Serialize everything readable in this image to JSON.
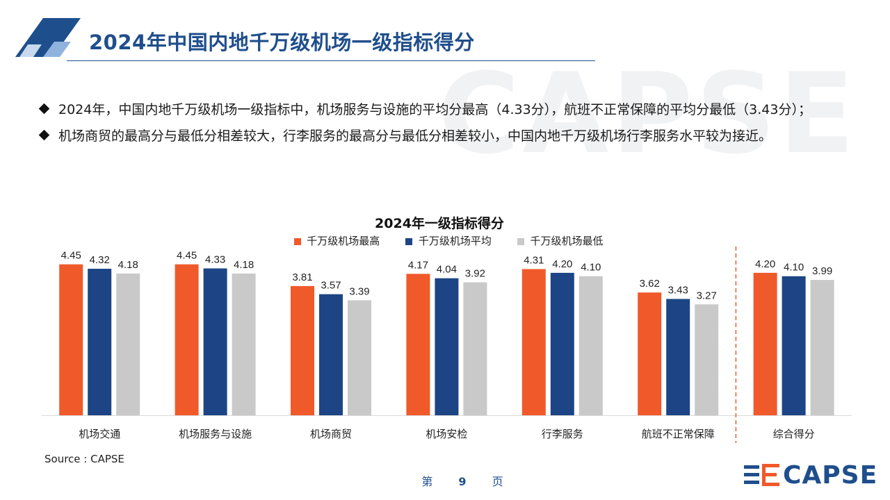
{
  "header": {
    "title": "2024年中国内地千万级机场一级指标得分"
  },
  "watermark": "CAPSE",
  "bullets": [
    "2024年，中国内地千万级机场一级指标中，机场服务与设施的平均分最高（4.33分），航班不正常保障的平均分最低（3.43分）；",
    "机场商贸的最高分与最低分相差较大，行李服务的最高分与最低分相差较小，中国内地千万级机场行李服务水平较为接近。"
  ],
  "chart_data": {
    "type": "bar",
    "title": "2024年一级指标得分",
    "categories": [
      "机场交通",
      "机场服务与设施",
      "机场商贸",
      "机场安检",
      "行李服务",
      "航班不正常保障",
      "综合得分"
    ],
    "series": [
      {
        "name": "千万级机场最高",
        "color": "#f0592a",
        "values": [
          4.45,
          4.45,
          3.81,
          4.17,
          4.31,
          3.62,
          4.2
        ]
      },
      {
        "name": "千万级机场平均",
        "color": "#1d4585",
        "values": [
          4.32,
          4.33,
          3.57,
          4.04,
          4.2,
          3.43,
          4.1
        ]
      },
      {
        "name": "千万级机场最低",
        "color": "#c9c9c9",
        "values": [
          4.18,
          4.18,
          3.39,
          3.92,
          4.1,
          3.27,
          3.99
        ]
      }
    ],
    "ylim": [
      0,
      4.75
    ],
    "separator_color": "#f0592a",
    "legend_position": "top"
  },
  "footer": {
    "source": "Source : CAPSE",
    "page_prefix": "第",
    "page_number": "9",
    "page_suffix": "页",
    "logo_text": "CAPSE"
  }
}
